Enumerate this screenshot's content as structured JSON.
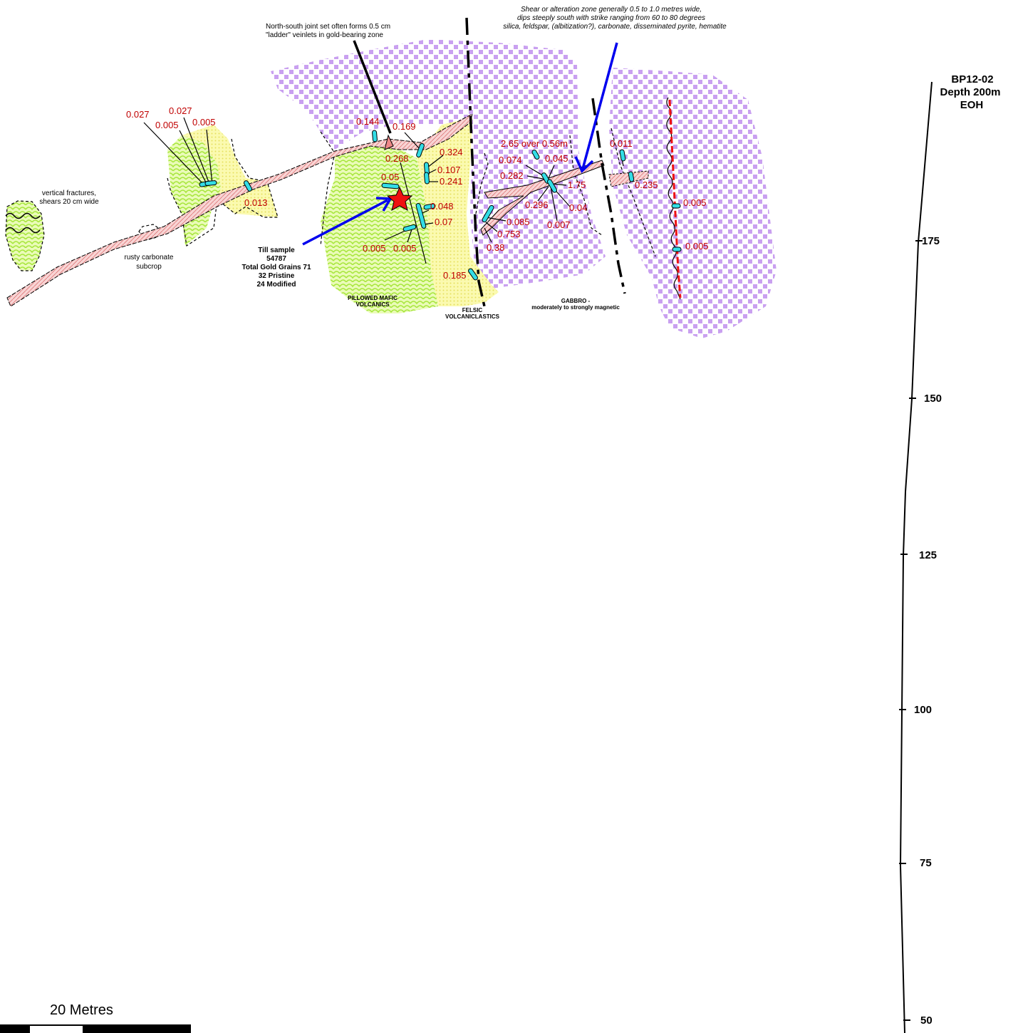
{
  "map": {
    "colors": {
      "gabbro": "#c9a0f0",
      "mafic": "#a6e63a",
      "felsic": "#f7f38a",
      "shear": "#f6c8c8",
      "sample": "#33dde6",
      "assay_text": "#c00000",
      "arrow": "#0000ee",
      "star": "#ee1111"
    },
    "annotations": {
      "joint_1": "North-south joint set often forms 0.5 cm",
      "joint_2": "\"ladder\" veinlets in gold-bearing zone",
      "shear_1": "Shear or alteration zone generally 0.5 to 1.0 metres wide,",
      "shear_2": "dips steeply south with strike ranging from 60 to 80 degrees",
      "shear_3": "silica, feldspar, (albitization?), carbonate, disseminated pyrite, hematite",
      "frac_1": "vertical fractures,",
      "frac_2": "shears 20 cm wide",
      "rusty_1": "rusty carbonate",
      "rusty_2": "subcrop"
    },
    "till": {
      "line1": "Till sample",
      "line2": "54787",
      "line3": "Total Gold Grains 71",
      "line4": "32 Pristine",
      "line5": "24 Modified"
    },
    "units": {
      "mafic_1": "PILLOWED MAFIC",
      "mafic_2": "VOLCANICS",
      "felsic_1": "FELSIC",
      "felsic_2": "VOLCANICLASTICS",
      "gabbro_1": "GABBRO -",
      "gabbro_2": "moderately to strongly magnetic"
    },
    "assays": {
      "a0027a": "0.027",
      "a0027b": "0.027",
      "a0005a": "0.005",
      "a0005b": "0.005",
      "a0013": "0.013",
      "a0144": "0.144",
      "a0169": "0.169",
      "a0268": "0.268",
      "a0324": "0.324",
      "a0107": "0.107",
      "a0241": "0.241",
      "a005": "0.05",
      "a0048": "0.048",
      "a007": "0.07",
      "a0005c": "0.005",
      "a0005d": "0.005",
      "a0185": "0.185",
      "a265": "2.65 over 0.56m",
      "a0074": "0.074",
      "a0045": "0.045",
      "a0282": "0.282",
      "a175": "1.75",
      "a0296": "0.296",
      "a004": "0.04",
      "a0085": "0.085",
      "a0753": "0.753",
      "a038": "0.38",
      "a0007": "0.007",
      "a0011": "0.011",
      "a0235": "0.235",
      "a0005e": "0.005",
      "a0005f": "0.005"
    },
    "drillhole": {
      "name": "BP12-02",
      "depth": "Depth 200m",
      "eoh": "EOH",
      "ticks": [
        "175",
        "150",
        "125",
        "100",
        "75",
        "50"
      ]
    },
    "scale_bar": {
      "label": "20 Metres"
    }
  }
}
